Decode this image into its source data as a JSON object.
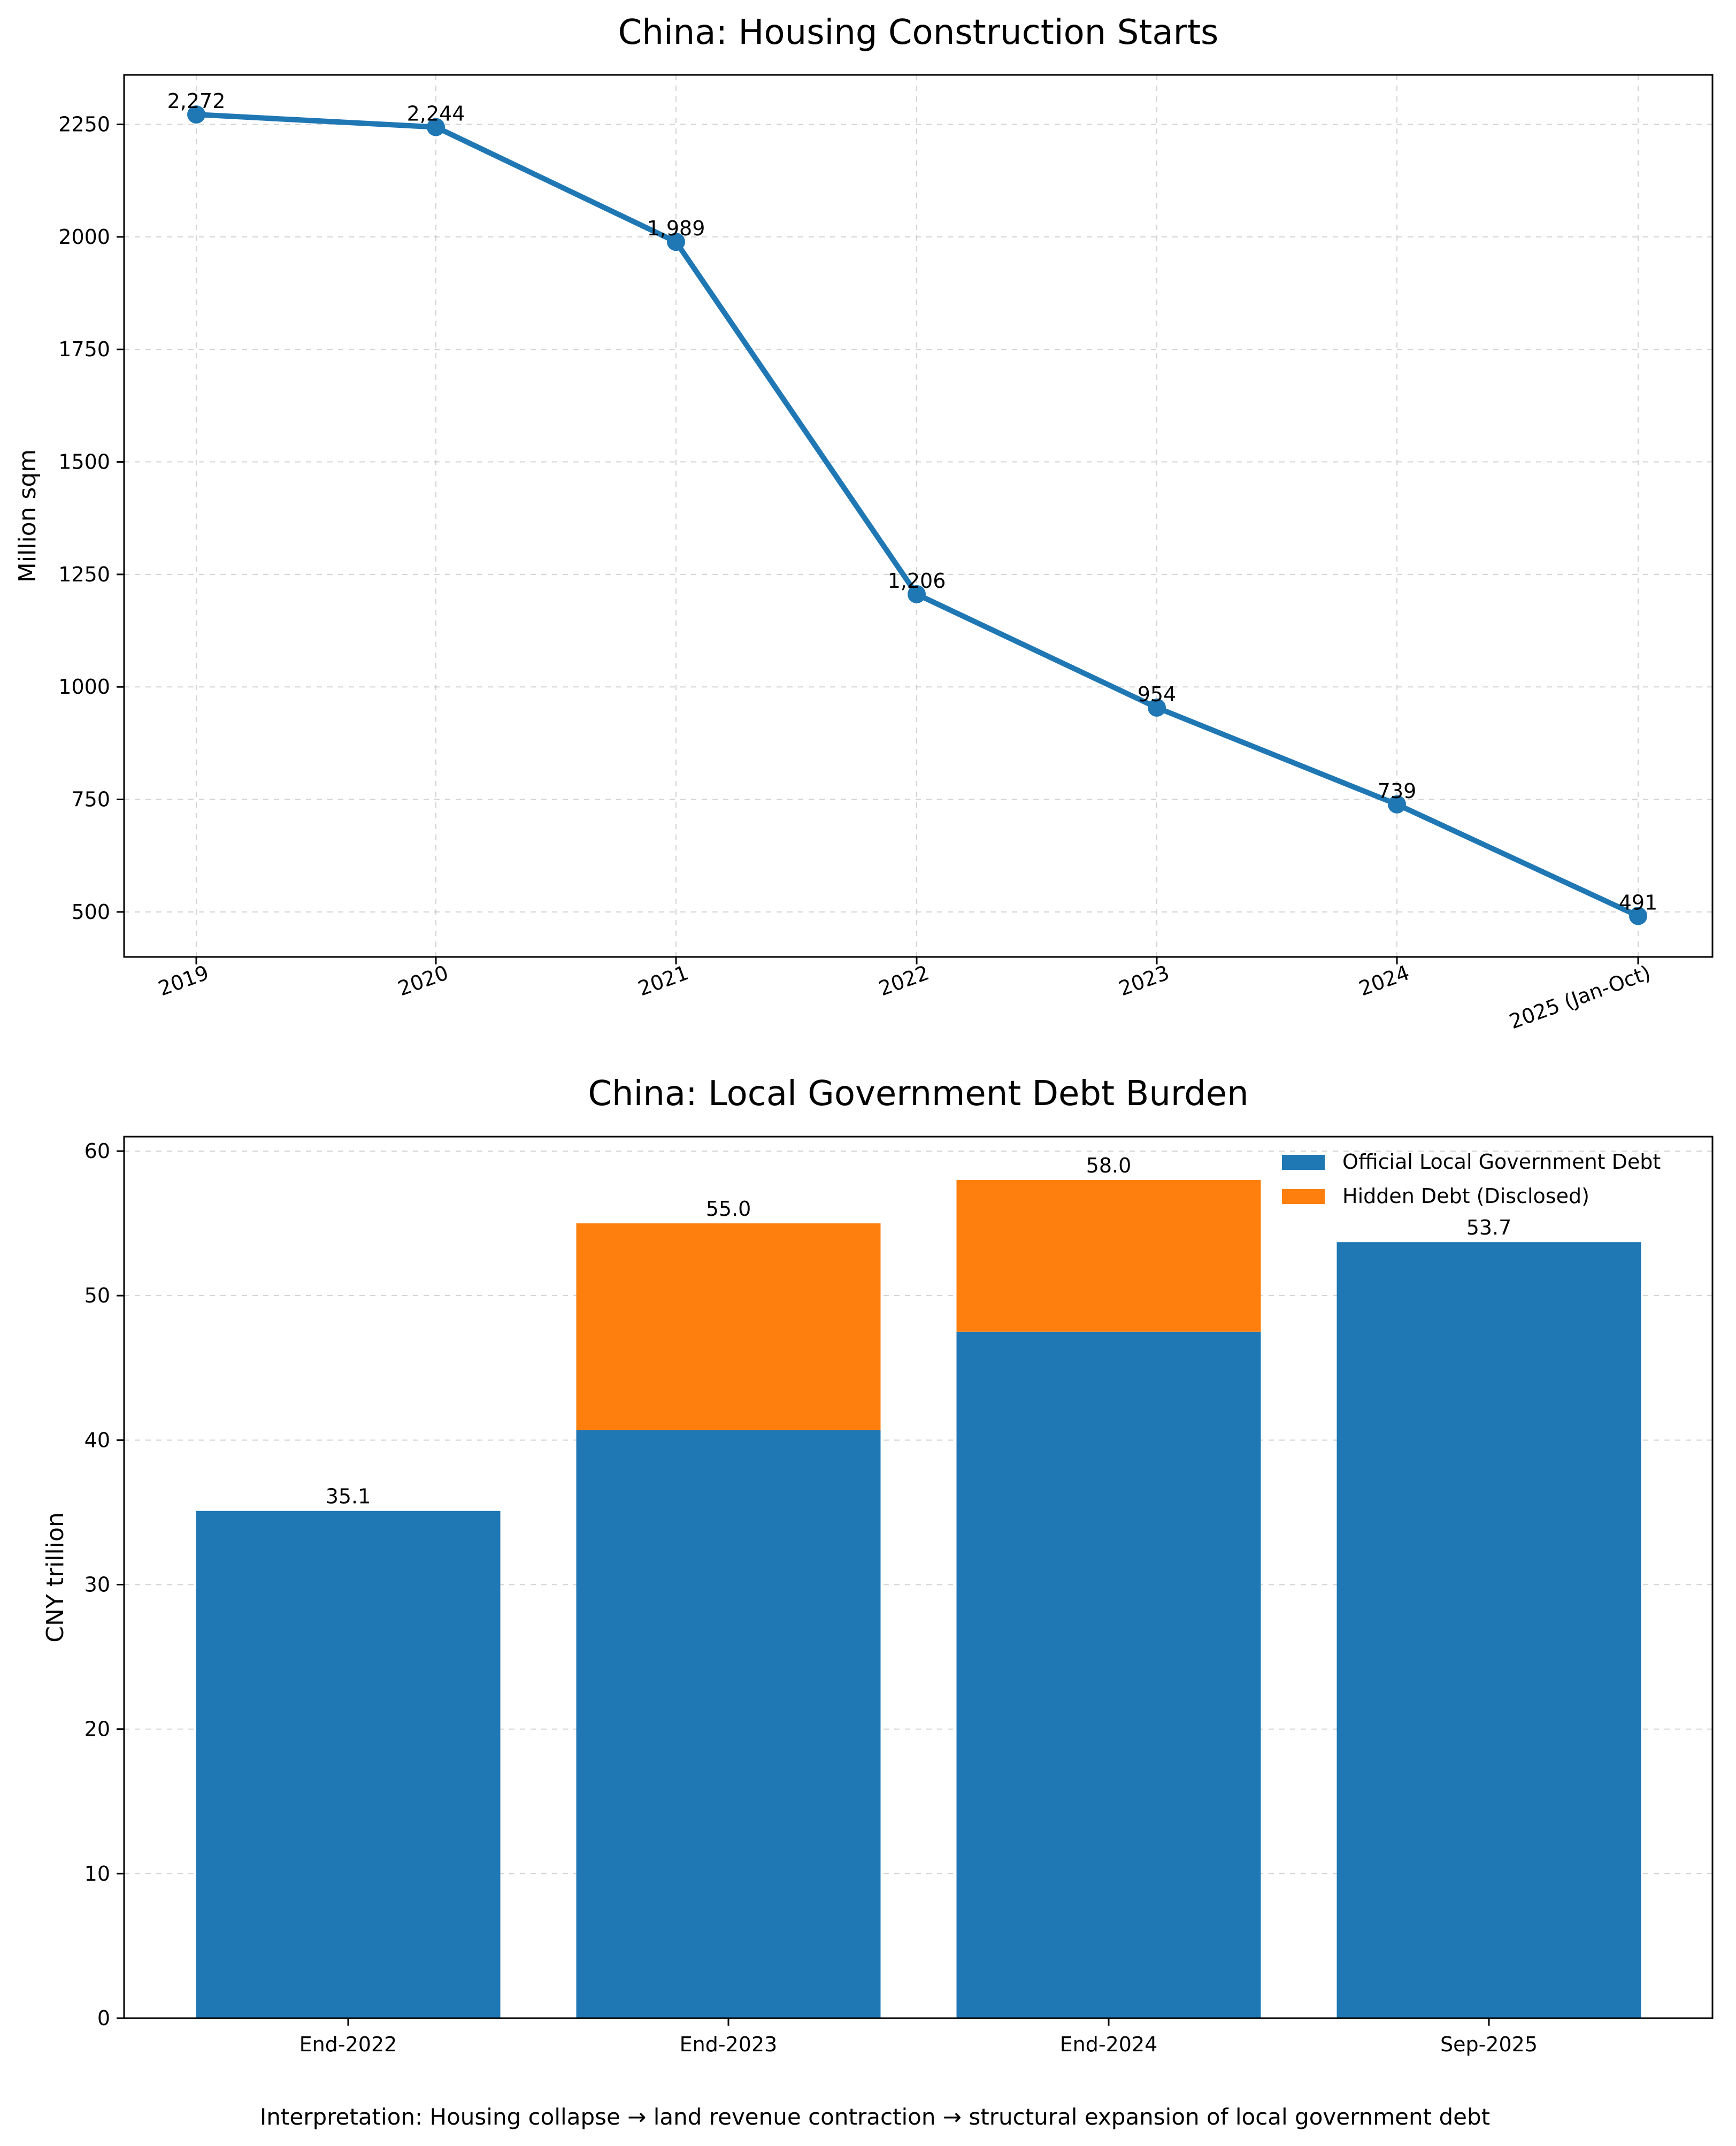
{
  "chart_data": [
    {
      "type": "line",
      "title": "China: Housing Construction Starts",
      "xlabel": "",
      "ylabel": "Million sqm",
      "categories": [
        "2019",
        "2020",
        "2021",
        "2022",
        "2023",
        "2024",
        "2025 (Jan-Oct)"
      ],
      "values": [
        2272,
        2244,
        1989,
        1206,
        954,
        739,
        491
      ],
      "value_labels": [
        "2,272",
        "2,244",
        "1,989",
        "1,206",
        "954",
        "739",
        "491"
      ],
      "ylim": [
        400,
        2360
      ],
      "yticks": [
        500,
        750,
        1000,
        1250,
        1500,
        1750,
        2000,
        2250
      ],
      "grid": true,
      "color": "#1f77b4"
    },
    {
      "type": "bar",
      "stacked": true,
      "title": "China: Local Government Debt Burden",
      "xlabel": "",
      "ylabel": "CNY trillion",
      "categories": [
        "End-2022",
        "End-2023",
        "End-2024",
        "Sep-2025"
      ],
      "series": [
        {
          "name": "Official Local Government Debt",
          "color": "#1f77b4",
          "values": [
            35.1,
            40.7,
            47.5,
            53.7
          ]
        },
        {
          "name": "Hidden Debt (Disclosed)",
          "color": "#ff7f0e",
          "values": [
            0,
            14.3,
            10.5,
            0
          ]
        }
      ],
      "total_labels": [
        "35.1",
        "55.0",
        "58.0",
        "53.7"
      ],
      "ylim": [
        0,
        61
      ],
      "yticks": [
        0,
        10,
        20,
        30,
        40,
        50,
        60
      ],
      "grid": true,
      "legend_position": "top-right"
    }
  ],
  "caption": "Interpretation: Housing collapse → land revenue contraction → structural expansion of local government debt"
}
